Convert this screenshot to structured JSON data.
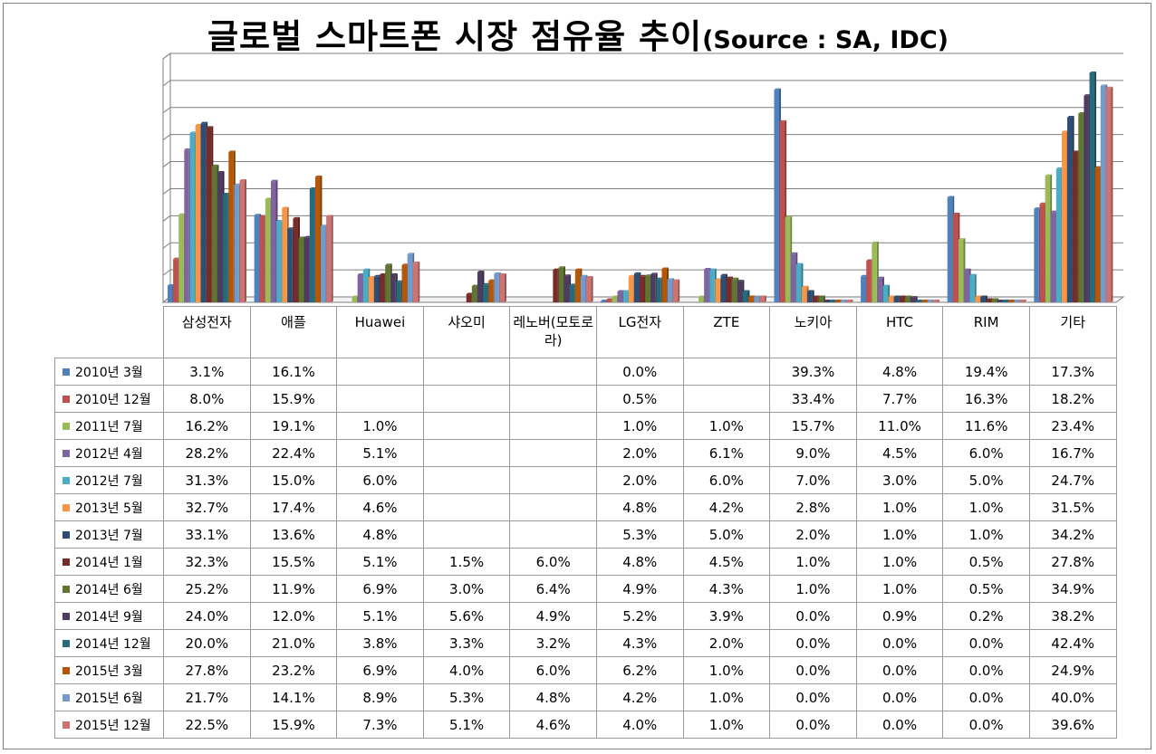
{
  "title": "글로벌 스마트폰 시장 점유율 추이",
  "source": "(Source : SA, IDC)",
  "chart_data": {
    "type": "bar",
    "title": "글로벌 스마트폰 시장 점유율 추이(Source : SA, IDC)",
    "categories": [
      "삼성전자",
      "애플",
      "Huawei",
      "샤오미",
      "레노버(모토로라)",
      "LG전자",
      "ZTE",
      "노키아",
      "HTC",
      "RIM",
      "기타"
    ],
    "ylim": [
      0,
      45
    ],
    "grid": true,
    "legend": "table-left",
    "series": [
      {
        "name": "2010년 3월",
        "color": "#4F81BD",
        "values": [
          "3.1%",
          "16.1%",
          "",
          "",
          "",
          "0.0%",
          "",
          "39.3%",
          "4.8%",
          "19.4%",
          "17.3%"
        ]
      },
      {
        "name": "2010년 12월",
        "color": "#C0504D",
        "values": [
          "8.0%",
          "15.9%",
          "",
          "",
          "",
          "0.5%",
          "",
          "33.4%",
          "7.7%",
          "16.3%",
          "18.2%"
        ]
      },
      {
        "name": "2011년 7월",
        "color": "#9BBB59",
        "values": [
          "16.2%",
          "19.1%",
          "1.0%",
          "",
          "",
          "1.0%",
          "1.0%",
          "15.7%",
          "11.0%",
          "11.6%",
          "23.4%"
        ]
      },
      {
        "name": "2012년 4월",
        "color": "#8064A2",
        "values": [
          "28.2%",
          "22.4%",
          "5.1%",
          "",
          "",
          "2.0%",
          "6.1%",
          "9.0%",
          "4.5%",
          "6.0%",
          "16.7%"
        ]
      },
      {
        "name": "2012년 7월",
        "color": "#4BACC6",
        "values": [
          "31.3%",
          "15.0%",
          "6.0%",
          "",
          "",
          "2.0%",
          "6.0%",
          "7.0%",
          "3.0%",
          "5.0%",
          "24.7%"
        ]
      },
      {
        "name": "2013년 5월",
        "color": "#F79646",
        "values": [
          "32.7%",
          "17.4%",
          "4.6%",
          "",
          "",
          "4.8%",
          "4.2%",
          "2.8%",
          "1.0%",
          "1.0%",
          "31.5%"
        ]
      },
      {
        "name": "2013년 7월",
        "color": "#2C4D75",
        "values": [
          "33.1%",
          "13.6%",
          "4.8%",
          "",
          "",
          "5.3%",
          "5.0%",
          "2.0%",
          "1.0%",
          "1.0%",
          "34.2%"
        ]
      },
      {
        "name": "2014년 1월",
        "color": "#772C2A",
        "values": [
          "32.3%",
          "15.5%",
          "5.1%",
          "1.5%",
          "6.0%",
          "4.8%",
          "4.5%",
          "1.0%",
          "1.0%",
          "0.5%",
          "27.8%"
        ]
      },
      {
        "name": "2014년 6월",
        "color": "#5F7530",
        "values": [
          "25.2%",
          "11.9%",
          "6.9%",
          "3.0%",
          "6.4%",
          "4.9%",
          "4.3%",
          "1.0%",
          "1.0%",
          "0.5%",
          "34.9%"
        ]
      },
      {
        "name": "2014년 9월",
        "color": "#4D3B62",
        "values": [
          "24.0%",
          "12.0%",
          "5.1%",
          "5.6%",
          "4.9%",
          "5.2%",
          "3.9%",
          "0.0%",
          "0.9%",
          "0.2%",
          "38.2%"
        ]
      },
      {
        "name": "2014년 12월",
        "color": "#276A7C",
        "values": [
          "20.0%",
          "21.0%",
          "3.8%",
          "3.3%",
          "3.2%",
          "4.3%",
          "2.0%",
          "0.0%",
          "0.0%",
          "0.0%",
          "42.4%"
        ]
      },
      {
        "name": "2015년 3월",
        "color": "#B65708",
        "values": [
          "27.8%",
          "23.2%",
          "6.9%",
          "4.0%",
          "6.0%",
          "6.2%",
          "1.0%",
          "0.0%",
          "0.0%",
          "0.0%",
          "24.9%"
        ]
      },
      {
        "name": "2015년 6월",
        "color": "#729ACA",
        "values": [
          "21.7%",
          "14.1%",
          "8.9%",
          "5.3%",
          "4.8%",
          "4.2%",
          "1.0%",
          "0.0%",
          "0.0%",
          "0.0%",
          "40.0%"
        ]
      },
      {
        "name": "2015년 12월",
        "color": "#CD7371",
        "values": [
          "22.5%",
          "15.9%",
          "7.3%",
          "5.1%",
          "4.6%",
          "4.0%",
          "1.0%",
          "0.0%",
          "0.0%",
          "0.0%",
          "39.6%"
        ]
      }
    ]
  }
}
